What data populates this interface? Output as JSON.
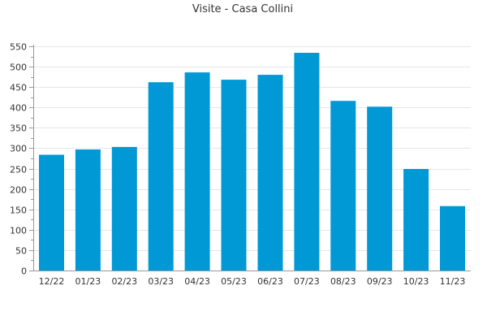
{
  "chart_data": {
    "type": "bar",
    "title": "Visite - Casa Collini",
    "xlabel": "",
    "ylabel": "",
    "categories": [
      "12/22",
      "01/23",
      "02/23",
      "03/23",
      "04/23",
      "05/23",
      "06/23",
      "07/23",
      "08/23",
      "09/23",
      "10/23",
      "11/23"
    ],
    "values": [
      284,
      297,
      303,
      462,
      486,
      468,
      480,
      534,
      416,
      402,
      249,
      158
    ],
    "ylim": [
      0,
      550
    ],
    "yticks": [
      0,
      50,
      100,
      150,
      200,
      250,
      300,
      350,
      400,
      450,
      500,
      550
    ],
    "grid": true,
    "legend": "none",
    "bar_color": "#0099d6",
    "axis_color": "#999999",
    "grid_color": "#e6e6e6"
  }
}
